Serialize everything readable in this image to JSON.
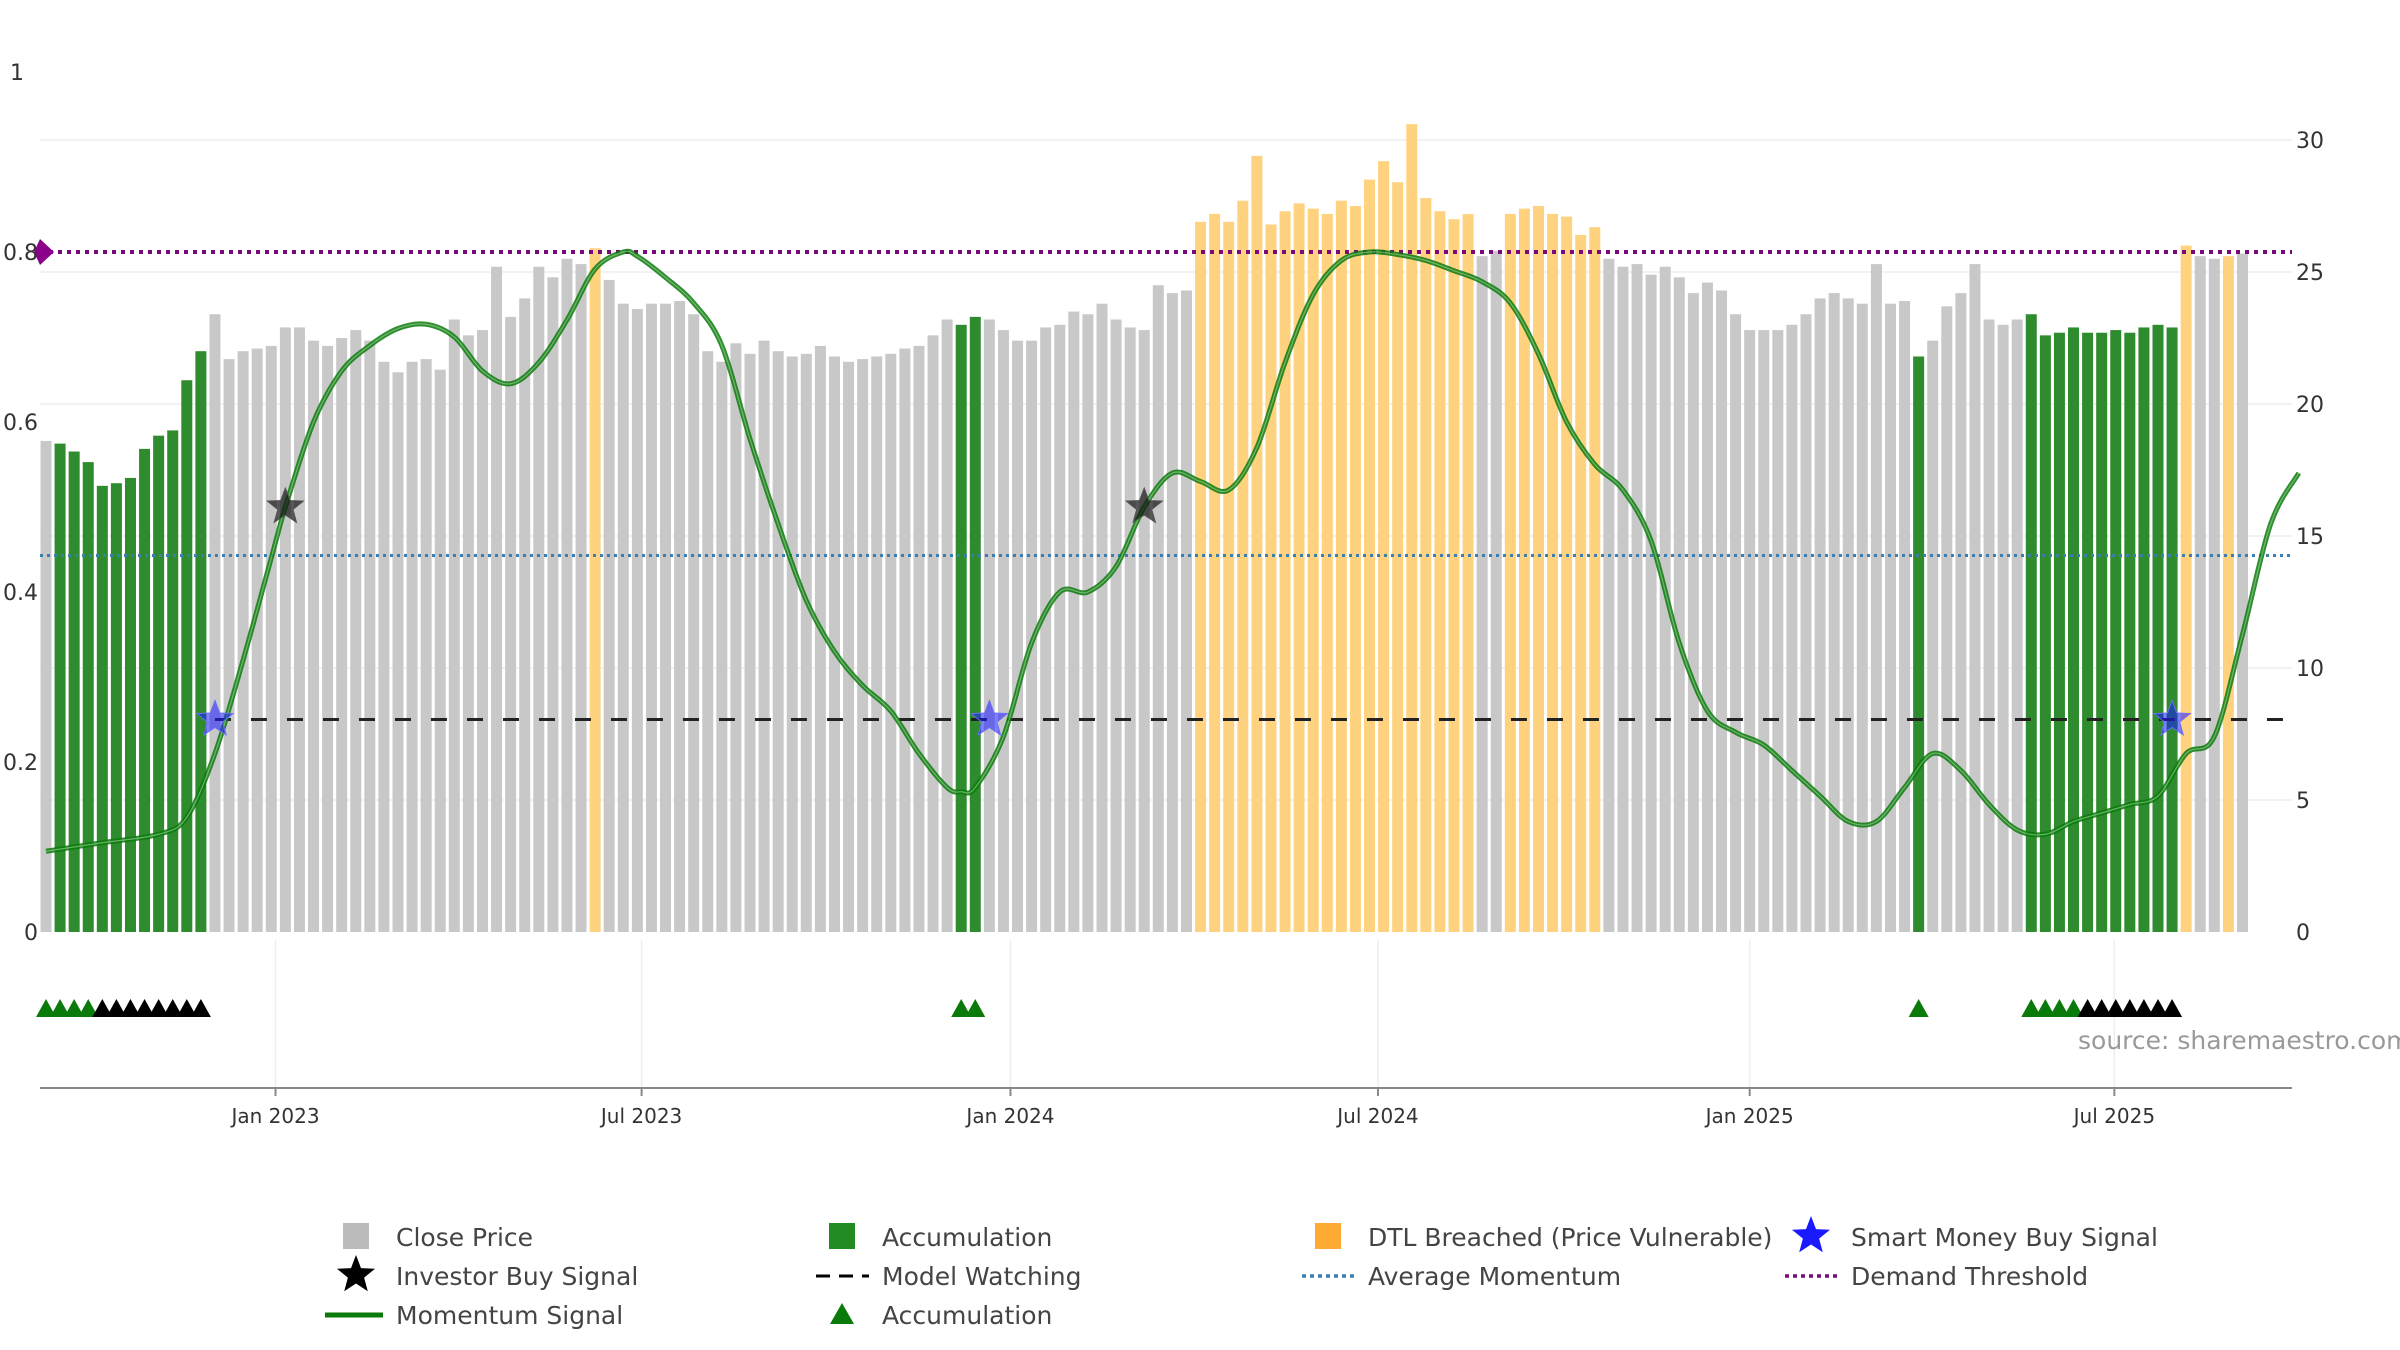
{
  "colors": {
    "close": "#c8c8c8",
    "accumulation": "#2e8b2e",
    "dtl": "#ffd27f",
    "momentum": "#0a7a0a",
    "smart_money": "#1a1aff",
    "investor": "#111111",
    "demand": "#7a0a7a",
    "avg_momentum": "#3a7fb0",
    "model_watching": "#222222",
    "grid": "#eeeeee"
  },
  "chart_data": {
    "type": "bar",
    "title": "",
    "source": "source: sharemaestro.com",
    "x_ticks": [
      "Jan 2023",
      "Jul 2023",
      "Jan 2024",
      "Jul 2024",
      "Jan 2025",
      "Jul 2025"
    ],
    "left_axis": {
      "ylim": [
        0,
        1
      ],
      "ticks": [
        "0",
        "0.2",
        "0.4",
        "0.6",
        "0.8",
        "1"
      ]
    },
    "right_axis": {
      "ylim": [
        0,
        32
      ],
      "ticks": [
        "0",
        "5",
        "10",
        "15",
        "20",
        "25",
        "30"
      ]
    },
    "bar_start_week": 0,
    "close_price_bars": [
      {
        "w": 0,
        "v": 18.6,
        "s": "c"
      },
      {
        "w": 1,
        "v": 18.5,
        "s": "a"
      },
      {
        "w": 2,
        "v": 18.2,
        "s": "a"
      },
      {
        "w": 3,
        "v": 17.8,
        "s": "a"
      },
      {
        "w": 4,
        "v": 16.9,
        "s": "a"
      },
      {
        "w": 5,
        "v": 17.0,
        "s": "a"
      },
      {
        "w": 6,
        "v": 17.2,
        "s": "a"
      },
      {
        "w": 7,
        "v": 18.3,
        "s": "a"
      },
      {
        "w": 8,
        "v": 18.8,
        "s": "a"
      },
      {
        "w": 9,
        "v": 19.0,
        "s": "a"
      },
      {
        "w": 10,
        "v": 20.9,
        "s": "a"
      },
      {
        "w": 11,
        "v": 22.0,
        "s": "a"
      },
      {
        "w": 12,
        "v": 23.4,
        "s": "c"
      },
      {
        "w": 13,
        "v": 21.7,
        "s": "c"
      },
      {
        "w": 14,
        "v": 22.0,
        "s": "c"
      },
      {
        "w": 15,
        "v": 22.1,
        "s": "c"
      },
      {
        "w": 16,
        "v": 22.2,
        "s": "c"
      },
      {
        "w": 17,
        "v": 22.9,
        "s": "c"
      },
      {
        "w": 18,
        "v": 22.9,
        "s": "c"
      },
      {
        "w": 19,
        "v": 22.4,
        "s": "c"
      },
      {
        "w": 20,
        "v": 22.2,
        "s": "c"
      },
      {
        "w": 21,
        "v": 22.5,
        "s": "c"
      },
      {
        "w": 22,
        "v": 22.8,
        "s": "c"
      },
      {
        "w": 23,
        "v": 22.4,
        "s": "c"
      },
      {
        "w": 24,
        "v": 21.6,
        "s": "c"
      },
      {
        "w": 25,
        "v": 21.2,
        "s": "c"
      },
      {
        "w": 26,
        "v": 21.6,
        "s": "c"
      },
      {
        "w": 27,
        "v": 21.7,
        "s": "c"
      },
      {
        "w": 28,
        "v": 21.3,
        "s": "c"
      },
      {
        "w": 29,
        "v": 23.2,
        "s": "c"
      },
      {
        "w": 30,
        "v": 22.6,
        "s": "c"
      },
      {
        "w": 31,
        "v": 22.8,
        "s": "c"
      },
      {
        "w": 32,
        "v": 25.2,
        "s": "c"
      },
      {
        "w": 33,
        "v": 23.3,
        "s": "c"
      },
      {
        "w": 34,
        "v": 24.0,
        "s": "c"
      },
      {
        "w": 35,
        "v": 25.2,
        "s": "c"
      },
      {
        "w": 36,
        "v": 24.8,
        "s": "c"
      },
      {
        "w": 37,
        "v": 25.5,
        "s": "c"
      },
      {
        "w": 38,
        "v": 25.3,
        "s": "c"
      },
      {
        "w": 39,
        "v": 25.9,
        "s": "d"
      },
      {
        "w": 40,
        "v": 24.7,
        "s": "c"
      },
      {
        "w": 41,
        "v": 23.8,
        "s": "c"
      },
      {
        "w": 42,
        "v": 23.6,
        "s": "c"
      },
      {
        "w": 43,
        "v": 23.8,
        "s": "c"
      },
      {
        "w": 44,
        "v": 23.8,
        "s": "c"
      },
      {
        "w": 45,
        "v": 23.9,
        "s": "c"
      },
      {
        "w": 46,
        "v": 23.4,
        "s": "c"
      },
      {
        "w": 47,
        "v": 22.0,
        "s": "c"
      },
      {
        "w": 48,
        "v": 21.6,
        "s": "c"
      },
      {
        "w": 49,
        "v": 22.3,
        "s": "c"
      },
      {
        "w": 50,
        "v": 21.9,
        "s": "c"
      },
      {
        "w": 51,
        "v": 22.4,
        "s": "c"
      },
      {
        "w": 52,
        "v": 22.0,
        "s": "c"
      },
      {
        "w": 53,
        "v": 21.8,
        "s": "c"
      },
      {
        "w": 54,
        "v": 21.9,
        "s": "c"
      },
      {
        "w": 55,
        "v": 22.2,
        "s": "c"
      },
      {
        "w": 56,
        "v": 21.8,
        "s": "c"
      },
      {
        "w": 57,
        "v": 21.6,
        "s": "c"
      },
      {
        "w": 58,
        "v": 21.7,
        "s": "c"
      },
      {
        "w": 59,
        "v": 21.8,
        "s": "c"
      },
      {
        "w": 60,
        "v": 21.9,
        "s": "c"
      },
      {
        "w": 61,
        "v": 22.1,
        "s": "c"
      },
      {
        "w": 62,
        "v": 22.2,
        "s": "c"
      },
      {
        "w": 63,
        "v": 22.6,
        "s": "c"
      },
      {
        "w": 64,
        "v": 23.2,
        "s": "c"
      },
      {
        "w": 65,
        "v": 23.0,
        "s": "a"
      },
      {
        "w": 66,
        "v": 23.3,
        "s": "a"
      },
      {
        "w": 67,
        "v": 23.2,
        "s": "c"
      },
      {
        "w": 68,
        "v": 22.8,
        "s": "c"
      },
      {
        "w": 69,
        "v": 22.4,
        "s": "c"
      },
      {
        "w": 70,
        "v": 22.4,
        "s": "c"
      },
      {
        "w": 71,
        "v": 22.9,
        "s": "c"
      },
      {
        "w": 72,
        "v": 23.0,
        "s": "c"
      },
      {
        "w": 73,
        "v": 23.5,
        "s": "c"
      },
      {
        "w": 74,
        "v": 23.4,
        "s": "c"
      },
      {
        "w": 75,
        "v": 23.8,
        "s": "c"
      },
      {
        "w": 76,
        "v": 23.2,
        "s": "c"
      },
      {
        "w": 77,
        "v": 22.9,
        "s": "c"
      },
      {
        "w": 78,
        "v": 22.8,
        "s": "c"
      },
      {
        "w": 79,
        "v": 24.5,
        "s": "c"
      },
      {
        "w": 80,
        "v": 24.2,
        "s": "c"
      },
      {
        "w": 81,
        "v": 24.3,
        "s": "c"
      },
      {
        "w": 82,
        "v": 26.9,
        "s": "d"
      },
      {
        "w": 83,
        "v": 27.2,
        "s": "d"
      },
      {
        "w": 84,
        "v": 26.9,
        "s": "d"
      },
      {
        "w": 85,
        "v": 27.7,
        "s": "d"
      },
      {
        "w": 86,
        "v": 29.4,
        "s": "d"
      },
      {
        "w": 87,
        "v": 26.8,
        "s": "d"
      },
      {
        "w": 88,
        "v": 27.3,
        "s": "d"
      },
      {
        "w": 89,
        "v": 27.6,
        "s": "d"
      },
      {
        "w": 90,
        "v": 27.4,
        "s": "d"
      },
      {
        "w": 91,
        "v": 27.2,
        "s": "d"
      },
      {
        "w": 92,
        "v": 27.7,
        "s": "d"
      },
      {
        "w": 93,
        "v": 27.5,
        "s": "d"
      },
      {
        "w": 94,
        "v": 28.5,
        "s": "d"
      },
      {
        "w": 95,
        "v": 29.2,
        "s": "d"
      },
      {
        "w": 96,
        "v": 28.4,
        "s": "d"
      },
      {
        "w": 97,
        "v": 30.6,
        "s": "d"
      },
      {
        "w": 98,
        "v": 27.8,
        "s": "d"
      },
      {
        "w": 99,
        "v": 27.3,
        "s": "d"
      },
      {
        "w": 100,
        "v": 27.0,
        "s": "d"
      },
      {
        "w": 101,
        "v": 27.2,
        "s": "d"
      },
      {
        "w": 102,
        "v": 25.6,
        "s": "c"
      },
      {
        "w": 103,
        "v": 25.8,
        "s": "c"
      },
      {
        "w": 104,
        "v": 27.2,
        "s": "d"
      },
      {
        "w": 105,
        "v": 27.4,
        "s": "d"
      },
      {
        "w": 106,
        "v": 27.5,
        "s": "d"
      },
      {
        "w": 107,
        "v": 27.2,
        "s": "d"
      },
      {
        "w": 108,
        "v": 27.1,
        "s": "d"
      },
      {
        "w": 109,
        "v": 26.4,
        "s": "d"
      },
      {
        "w": 110,
        "v": 26.7,
        "s": "d"
      },
      {
        "w": 111,
        "v": 25.5,
        "s": "c"
      },
      {
        "w": 112,
        "v": 25.2,
        "s": "c"
      },
      {
        "w": 113,
        "v": 25.3,
        "s": "c"
      },
      {
        "w": 114,
        "v": 24.9,
        "s": "c"
      },
      {
        "w": 115,
        "v": 25.2,
        "s": "c"
      },
      {
        "w": 116,
        "v": 24.8,
        "s": "c"
      },
      {
        "w": 117,
        "v": 24.2,
        "s": "c"
      },
      {
        "w": 118,
        "v": 24.6,
        "s": "c"
      },
      {
        "w": 119,
        "v": 24.3,
        "s": "c"
      },
      {
        "w": 120,
        "v": 23.4,
        "s": "c"
      },
      {
        "w": 121,
        "v": 22.8,
        "s": "c"
      },
      {
        "w": 122,
        "v": 22.8,
        "s": "c"
      },
      {
        "w": 123,
        "v": 22.8,
        "s": "c"
      },
      {
        "w": 124,
        "v": 23.0,
        "s": "c"
      },
      {
        "w": 125,
        "v": 23.4,
        "s": "c"
      },
      {
        "w": 126,
        "v": 24.0,
        "s": "c"
      },
      {
        "w": 127,
        "v": 24.2,
        "s": "c"
      },
      {
        "w": 128,
        "v": 24.0,
        "s": "c"
      },
      {
        "w": 129,
        "v": 23.8,
        "s": "c"
      },
      {
        "w": 130,
        "v": 25.3,
        "s": "c"
      },
      {
        "w": 131,
        "v": 23.8,
        "s": "c"
      },
      {
        "w": 132,
        "v": 23.9,
        "s": "c"
      },
      {
        "w": 133,
        "v": 21.8,
        "s": "a"
      },
      {
        "w": 134,
        "v": 22.4,
        "s": "c"
      },
      {
        "w": 135,
        "v": 23.7,
        "s": "c"
      },
      {
        "w": 136,
        "v": 24.2,
        "s": "c"
      },
      {
        "w": 137,
        "v": 25.3,
        "s": "c"
      },
      {
        "w": 138,
        "v": 23.2,
        "s": "c"
      },
      {
        "w": 139,
        "v": 23.0,
        "s": "c"
      },
      {
        "w": 140,
        "v": 23.2,
        "s": "c"
      },
      {
        "w": 141,
        "v": 23.4,
        "s": "a"
      },
      {
        "w": 142,
        "v": 22.6,
        "s": "a"
      },
      {
        "w": 143,
        "v": 22.7,
        "s": "a"
      },
      {
        "w": 144,
        "v": 22.9,
        "s": "a"
      },
      {
        "w": 145,
        "v": 22.7,
        "s": "a"
      },
      {
        "w": 146,
        "v": 22.7,
        "s": "a"
      },
      {
        "w": 147,
        "v": 22.8,
        "s": "a"
      },
      {
        "w": 148,
        "v": 22.7,
        "s": "a"
      },
      {
        "w": 149,
        "v": 22.9,
        "s": "a"
      },
      {
        "w": 150,
        "v": 23.0,
        "s": "a"
      },
      {
        "w": 151,
        "v": 22.9,
        "s": "a"
      },
      {
        "w": 152,
        "v": 26.0,
        "s": "d"
      },
      {
        "w": 153,
        "v": 25.6,
        "s": "c"
      },
      {
        "w": 154,
        "v": 25.5,
        "s": "c"
      },
      {
        "w": 155,
        "v": 25.6,
        "s": "d"
      },
      {
        "w": 156,
        "v": 25.7,
        "s": "c"
      }
    ],
    "momentum_signal": [
      {
        "w": 0,
        "v": 0.095
      },
      {
        "w": 4,
        "v": 0.105
      },
      {
        "w": 8,
        "v": 0.115
      },
      {
        "w": 10,
        "v": 0.135
      },
      {
        "w": 12,
        "v": 0.21
      },
      {
        "w": 14,
        "v": 0.32
      },
      {
        "w": 16,
        "v": 0.44
      },
      {
        "w": 17,
        "v": 0.5
      },
      {
        "w": 19,
        "v": 0.6
      },
      {
        "w": 21,
        "v": 0.66
      },
      {
        "w": 23,
        "v": 0.69
      },
      {
        "w": 25,
        "v": 0.71
      },
      {
        "w": 27,
        "v": 0.715
      },
      {
        "w": 29,
        "v": 0.7
      },
      {
        "w": 31,
        "v": 0.66
      },
      {
        "w": 33,
        "v": 0.645
      },
      {
        "w": 35,
        "v": 0.67
      },
      {
        "w": 37,
        "v": 0.72
      },
      {
        "w": 39,
        "v": 0.78
      },
      {
        "w": 41,
        "v": 0.8
      },
      {
        "w": 42,
        "v": 0.795
      },
      {
        "w": 44,
        "v": 0.77
      },
      {
        "w": 46,
        "v": 0.74
      },
      {
        "w": 48,
        "v": 0.69
      },
      {
        "w": 50,
        "v": 0.58
      },
      {
        "w": 52,
        "v": 0.48
      },
      {
        "w": 54,
        "v": 0.39
      },
      {
        "w": 56,
        "v": 0.33
      },
      {
        "w": 58,
        "v": 0.29
      },
      {
        "w": 60,
        "v": 0.26
      },
      {
        "w": 62,
        "v": 0.21
      },
      {
        "w": 64,
        "v": 0.17
      },
      {
        "w": 65,
        "v": 0.165
      },
      {
        "w": 66,
        "v": 0.17
      },
      {
        "w": 68,
        "v": 0.23
      },
      {
        "w": 70,
        "v": 0.34
      },
      {
        "w": 72,
        "v": 0.4
      },
      {
        "w": 74,
        "v": 0.4
      },
      {
        "w": 76,
        "v": 0.43
      },
      {
        "w": 78,
        "v": 0.5
      },
      {
        "w": 80,
        "v": 0.54
      },
      {
        "w": 82,
        "v": 0.53
      },
      {
        "w": 84,
        "v": 0.52
      },
      {
        "w": 86,
        "v": 0.57
      },
      {
        "w": 88,
        "v": 0.67
      },
      {
        "w": 90,
        "v": 0.75
      },
      {
        "w": 92,
        "v": 0.79
      },
      {
        "w": 94,
        "v": 0.8
      },
      {
        "w": 96,
        "v": 0.797
      },
      {
        "w": 98,
        "v": 0.79
      },
      {
        "w": 100,
        "v": 0.778
      },
      {
        "w": 102,
        "v": 0.765
      },
      {
        "w": 104,
        "v": 0.74
      },
      {
        "w": 106,
        "v": 0.68
      },
      {
        "w": 108,
        "v": 0.6
      },
      {
        "w": 110,
        "v": 0.55
      },
      {
        "w": 112,
        "v": 0.52
      },
      {
        "w": 114,
        "v": 0.46
      },
      {
        "w": 116,
        "v": 0.34
      },
      {
        "w": 118,
        "v": 0.26
      },
      {
        "w": 120,
        "v": 0.235
      },
      {
        "w": 122,
        "v": 0.22
      },
      {
        "w": 124,
        "v": 0.19
      },
      {
        "w": 126,
        "v": 0.16
      },
      {
        "w": 128,
        "v": 0.13
      },
      {
        "w": 130,
        "v": 0.13
      },
      {
        "w": 132,
        "v": 0.17
      },
      {
        "w": 134,
        "v": 0.21
      },
      {
        "w": 136,
        "v": 0.19
      },
      {
        "w": 138,
        "v": 0.15
      },
      {
        "w": 140,
        "v": 0.12
      },
      {
        "w": 142,
        "v": 0.115
      },
      {
        "w": 144,
        "v": 0.13
      },
      {
        "w": 146,
        "v": 0.14
      },
      {
        "w": 148,
        "v": 0.15
      },
      {
        "w": 150,
        "v": 0.16
      },
      {
        "w": 152,
        "v": 0.21
      },
      {
        "w": 154,
        "v": 0.23
      },
      {
        "w": 156,
        "v": 0.35
      },
      {
        "w": 158,
        "v": 0.48
      },
      {
        "w": 160,
        "v": 0.54
      }
    ],
    "demand_threshold": 0.8,
    "average_momentum": 0.443,
    "model_watching": 0.25,
    "smart_money_buy_signals": [
      {
        "w": 12,
        "v": 0.25
      },
      {
        "w": 67,
        "v": 0.25
      },
      {
        "w": 151,
        "v": 0.25
      }
    ],
    "investor_buy_signals": [
      {
        "w": 17,
        "v": 0.5
      },
      {
        "w": 78,
        "v": 0.5
      }
    ],
    "accumulation_markers": [
      {
        "w": 0,
        "c": "g"
      },
      {
        "w": 1,
        "c": "g"
      },
      {
        "w": 2,
        "c": "g"
      },
      {
        "w": 3,
        "c": "g"
      },
      {
        "w": 4,
        "c": "k"
      },
      {
        "w": 5,
        "c": "k"
      },
      {
        "w": 6,
        "c": "k"
      },
      {
        "w": 7,
        "c": "k"
      },
      {
        "w": 8,
        "c": "k"
      },
      {
        "w": 9,
        "c": "k"
      },
      {
        "w": 10,
        "c": "k"
      },
      {
        "w": 11,
        "c": "k"
      },
      {
        "w": 65,
        "c": "g"
      },
      {
        "w": 66,
        "c": "g"
      },
      {
        "w": 133,
        "c": "g"
      },
      {
        "w": 141,
        "c": "g"
      },
      {
        "w": 142,
        "c": "g"
      },
      {
        "w": 143,
        "c": "g"
      },
      {
        "w": 144,
        "c": "g"
      },
      {
        "w": 145,
        "c": "k"
      },
      {
        "w": 146,
        "c": "k"
      },
      {
        "w": 147,
        "c": "k"
      },
      {
        "w": 148,
        "c": "k"
      },
      {
        "w": 149,
        "c": "k"
      },
      {
        "w": 150,
        "c": "k"
      },
      {
        "w": 151,
        "c": "k"
      }
    ],
    "legend": [
      {
        "key": "close",
        "label": "Close Price",
        "symbol": "square",
        "color": "#bbbbbb"
      },
      {
        "key": "accumulation_bar",
        "label": "Accumulation",
        "symbol": "square",
        "color": "#228b22"
      },
      {
        "key": "dtl",
        "label": "DTL Breached (Price Vulnerable)",
        "symbol": "square",
        "color": "#ffaa33"
      },
      {
        "key": "smart_money",
        "label": "Smart Money Buy Signal",
        "symbol": "star",
        "color": "#1a1aff"
      },
      {
        "key": "investor",
        "label": "Investor Buy Signal",
        "symbol": "star",
        "color": "#000000"
      },
      {
        "key": "model_watching",
        "label": "Model Watching",
        "symbol": "dash",
        "color": "#000000"
      },
      {
        "key": "avg_momentum",
        "label": "Average Momentum",
        "symbol": "dot",
        "color": "#3a7fb0"
      },
      {
        "key": "demand",
        "label": "Demand Threshold",
        "symbol": "dot",
        "color": "#7a0a7a"
      },
      {
        "key": "momentum",
        "label": "Momentum Signal",
        "symbol": "line",
        "color": "#0a7a0a"
      },
      {
        "key": "accumulation_marker",
        "label": "Accumulation",
        "symbol": "triangle",
        "color": "#0a7a0a"
      }
    ]
  }
}
